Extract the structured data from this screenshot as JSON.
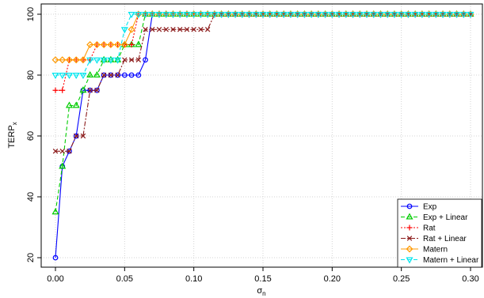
{
  "chart_data": {
    "type": "line",
    "title": "",
    "xlabel": "σ",
    "xlabel_sub": "n",
    "ylabel": "TERP",
    "ylabel_sub": "x",
    "xlim": [
      0,
      0.3
    ],
    "ylim": [
      20,
      100
    ],
    "xticks": [
      "0.00",
      "0.05",
      "0.10",
      "0.15",
      "0.20",
      "0.25",
      "0.30"
    ],
    "yticks": [
      "20",
      "40",
      "60",
      "80",
      "100"
    ],
    "grid": true,
    "legend_position": "bottom-right",
    "series": [
      {
        "name": "Exp",
        "color": "#0000ff",
        "marker": "circle",
        "dash": "",
        "x": [
          0,
          0.005,
          0.01,
          0.015,
          0.02,
          0.025,
          0.03,
          0.035,
          0.04,
          0.045,
          0.05,
          0.055,
          0.06,
          0.065,
          0.07
        ],
        "y": [
          20,
          50,
          55,
          60,
          75,
          75,
          75,
          80,
          80,
          80,
          80,
          80,
          80,
          85,
          100
        ]
      },
      {
        "name": "Exp + Linear",
        "color": "#00cc00",
        "marker": "triangle",
        "dash": "5,3",
        "x": [
          0,
          0.005,
          0.01,
          0.015,
          0.02,
          0.025,
          0.03,
          0.035,
          0.04,
          0.045,
          0.05,
          0.055,
          0.06,
          0.065
        ],
        "y": [
          35,
          50,
          70,
          70,
          75,
          80,
          80,
          85,
          85,
          85,
          90,
          90,
          90,
          100
        ]
      },
      {
        "name": "Rat",
        "color": "#ff0000",
        "marker": "plus",
        "dash": "2,2",
        "x": [
          0,
          0.005,
          0.01,
          0.015,
          0.02,
          0.025,
          0.03,
          0.035,
          0.04,
          0.045,
          0.05,
          0.055,
          0.06
        ],
        "y": [
          75,
          75,
          85,
          85,
          85,
          85,
          90,
          90,
          90,
          90,
          90,
          90,
          100
        ]
      },
      {
        "name": "Rat + Linear",
        "color": "#8b1a1a",
        "marker": "x",
        "dash": "6,2,2,2",
        "x": [
          0,
          0.005,
          0.01,
          0.015,
          0.02,
          0.025,
          0.03,
          0.035,
          0.04,
          0.045,
          0.05,
          0.055,
          0.06,
          0.065,
          0.07,
          0.075,
          0.08,
          0.085,
          0.09,
          0.095,
          0.1,
          0.105,
          0.11
        ],
        "y": [
          55,
          55,
          55,
          60,
          60,
          75,
          75,
          80,
          80,
          80,
          85,
          85,
          85,
          95,
          95,
          95,
          95,
          95,
          95,
          95,
          95,
          95,
          95
        ]
      },
      {
        "name": "Matern",
        "color": "#ff9900",
        "marker": "diamond",
        "dash": "",
        "x": [
          0,
          0.005,
          0.01,
          0.015,
          0.02,
          0.025,
          0.03,
          0.035,
          0.04,
          0.045,
          0.05,
          0.055,
          0.06
        ],
        "y": [
          85,
          85,
          85,
          85,
          85,
          90,
          90,
          90,
          90,
          90,
          90,
          95,
          100
        ]
      },
      {
        "name": "Matern + Linear",
        "color": "#00e5ee",
        "marker": "triangle-down",
        "dash": "5,3",
        "x": [
          0,
          0.005,
          0.01,
          0.015,
          0.02,
          0.025,
          0.03,
          0.035,
          0.04,
          0.045,
          0.05,
          0.055
        ],
        "y": [
          80,
          80,
          80,
          80,
          80,
          85,
          85,
          85,
          85,
          85,
          95,
          100
        ]
      }
    ],
    "plateau": {
      "x_start": 0.06,
      "x_end": 0.3,
      "step": 0.005,
      "y": 100
    }
  }
}
